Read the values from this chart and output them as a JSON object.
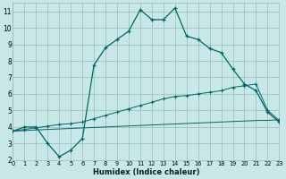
{
  "xlabel": "Humidex (Indice chaleur)",
  "bg_color": "#c8e8e8",
  "grid_color": "#99bbbb",
  "line_color": "#006666",
  "xlim": [
    0,
    23
  ],
  "ylim": [
    2,
    11.5
  ],
  "xticks": [
    0,
    1,
    2,
    3,
    4,
    5,
    6,
    7,
    8,
    9,
    10,
    11,
    12,
    13,
    14,
    15,
    16,
    17,
    18,
    19,
    20,
    21,
    22,
    23
  ],
  "yticks": [
    2,
    3,
    4,
    5,
    6,
    7,
    8,
    9,
    10,
    11
  ],
  "s1_x": [
    0,
    1,
    2,
    3,
    4,
    5,
    6,
    7,
    8,
    9,
    10,
    11,
    12,
    13,
    14,
    15,
    16,
    17,
    18,
    19,
    20,
    21,
    22,
    23
  ],
  "s1_y": [
    3.75,
    4.0,
    4.0,
    3.0,
    2.2,
    2.6,
    3.3,
    7.75,
    8.8,
    9.3,
    9.8,
    11.1,
    10.5,
    10.5,
    11.2,
    9.5,
    9.3,
    8.75,
    8.5,
    7.5,
    6.6,
    6.2,
    4.9,
    4.3
  ],
  "s2_x": [
    0,
    1,
    2,
    3,
    4,
    5,
    6,
    7,
    8,
    9,
    10,
    11,
    12,
    13,
    14,
    15,
    16,
    17,
    18,
    19,
    20,
    21,
    22,
    23
  ],
  "s2_y": [
    3.75,
    3.85,
    3.95,
    4.05,
    4.15,
    4.2,
    4.3,
    4.5,
    4.7,
    4.9,
    5.1,
    5.3,
    5.5,
    5.7,
    5.85,
    5.9,
    6.0,
    6.1,
    6.2,
    6.4,
    6.5,
    6.6,
    5.0,
    4.4
  ],
  "s3_x": [
    0,
    1,
    2,
    3,
    4,
    5,
    6,
    7,
    8,
    9,
    10,
    11,
    12,
    13,
    14,
    15,
    16,
    17,
    18,
    19,
    20,
    21,
    22,
    23
  ],
  "s3_y": [
    3.75,
    3.78,
    3.82,
    3.85,
    3.88,
    3.91,
    3.94,
    3.97,
    4.0,
    4.03,
    4.06,
    4.09,
    4.12,
    4.15,
    4.18,
    4.21,
    4.24,
    4.27,
    4.3,
    4.33,
    4.36,
    4.39,
    4.4,
    4.43
  ]
}
